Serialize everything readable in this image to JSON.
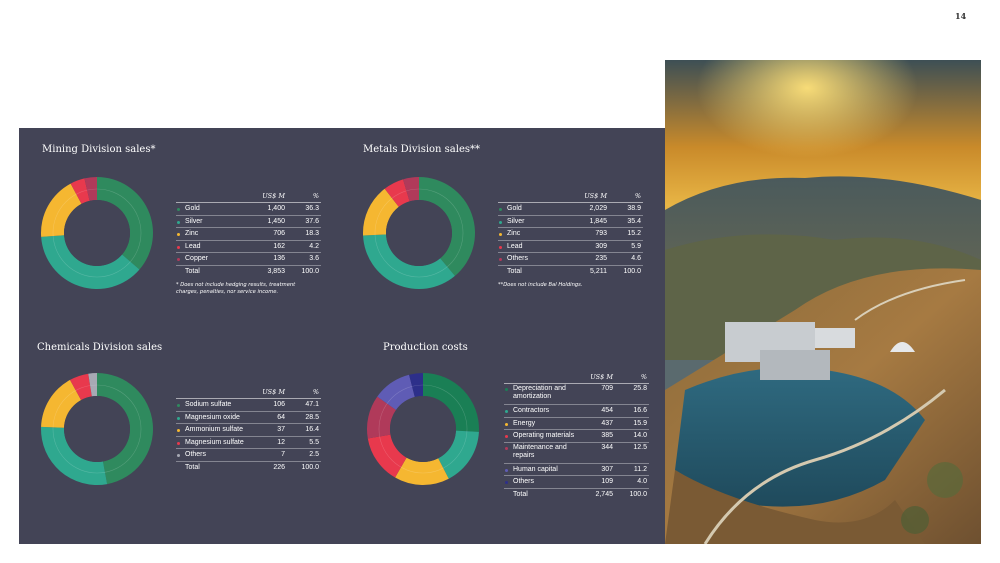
{
  "page_number": "14",
  "colors": {
    "panel": "#434456",
    "gold": "#2f8a5e",
    "silver": "#2fa88f",
    "zinc": "#f5b731",
    "lead": "#e8394d",
    "copper": "#b03a5a",
    "others": "#a7a9b4",
    "contractors": "#2fa88f",
    "depreciation": "#1a7f55",
    "energy": "#f5b731",
    "operating": "#e8394d",
    "maintenance": "#b03a5a",
    "human_capital": "#5f5cb5",
    "others_pc": "#2d2f8a"
  },
  "mining": {
    "title": "Mining Division sales*",
    "unit_header": "US$ M",
    "pct_header": "%",
    "rows": [
      {
        "label": "Gold",
        "value": "1,400",
        "pct": "36.3",
        "color": "#2f8a5e"
      },
      {
        "label": "Silver",
        "value": "1,450",
        "pct": "37.6",
        "color": "#2fa88f"
      },
      {
        "label": "Zinc",
        "value": "706",
        "pct": "18.3",
        "color": "#f5b731"
      },
      {
        "label": "Lead",
        "value": "162",
        "pct": "4.2",
        "color": "#e8394d"
      },
      {
        "label": "Copper",
        "value": "136",
        "pct": "3.6",
        "color": "#b03a5a"
      }
    ],
    "total": {
      "label": "Total",
      "value": "3,853",
      "pct": "100.0"
    },
    "footnote": "* Does not include hedging results, treatment charges, penalties, nor service income."
  },
  "metals": {
    "title": "Metals Division sales**",
    "unit_header": "US$ M",
    "pct_header": "%",
    "rows": [
      {
        "label": "Gold",
        "value": "2,029",
        "pct": "38.9",
        "color": "#2f8a5e"
      },
      {
        "label": "Silver",
        "value": "1,845",
        "pct": "35.4",
        "color": "#2fa88f"
      },
      {
        "label": "Zinc",
        "value": "793",
        "pct": "15.2",
        "color": "#f5b731"
      },
      {
        "label": "Lead",
        "value": "309",
        "pct": "5.9",
        "color": "#e8394d"
      },
      {
        "label": "Others",
        "value": "235",
        "pct": "4.6",
        "color": "#b03a5a"
      }
    ],
    "total": {
      "label": "Total",
      "value": "5,211",
      "pct": "100.0"
    },
    "footnote": "**Does not include Bal Holdings."
  },
  "chemicals": {
    "title": "Chemicals Division sales",
    "unit_header": "US$ M",
    "pct_header": "%",
    "rows": [
      {
        "label": "Sodium sulfate",
        "value": "106",
        "pct": "47.1",
        "color": "#2f8a5e"
      },
      {
        "label": "Magnesium oxide",
        "value": "64",
        "pct": "28.5",
        "color": "#2fa88f"
      },
      {
        "label": "Ammonium sulfate",
        "value": "37",
        "pct": "16.4",
        "color": "#f5b731"
      },
      {
        "label": "Magnesium sulfate",
        "value": "12",
        "pct": "5.5",
        "color": "#e8394d"
      },
      {
        "label": "Others",
        "value": "7",
        "pct": "2.5",
        "color": "#a7a9b4"
      }
    ],
    "total": {
      "label": "Total",
      "value": "226",
      "pct": "100.0"
    }
  },
  "production": {
    "title": "Production costs",
    "unit_header": "US$ M",
    "pct_header": "%",
    "rows": [
      {
        "label": "Depreciation and amortization",
        "value": "709",
        "pct": "25.8",
        "color": "#1a7f55",
        "tall": true
      },
      {
        "label": "Contractors",
        "value": "454",
        "pct": "16.6",
        "color": "#2fa88f"
      },
      {
        "label": "Energy",
        "value": "437",
        "pct": "15.9",
        "color": "#f5b731"
      },
      {
        "label": "Operating materials",
        "value": "385",
        "pct": "14.0",
        "color": "#e8394d"
      },
      {
        "label": "Maintenance and repairs",
        "value": "344",
        "pct": "12.5",
        "color": "#b03a5a",
        "tall": true
      },
      {
        "label": "Human capital",
        "value": "307",
        "pct": "11.2",
        "color": "#5f5cb5"
      },
      {
        "label": "Others",
        "value": "109",
        "pct": "4.0",
        "color": "#2d2f8a"
      }
    ],
    "total": {
      "label": "Total",
      "value": "2,745",
      "pct": "100.0"
    }
  }
}
